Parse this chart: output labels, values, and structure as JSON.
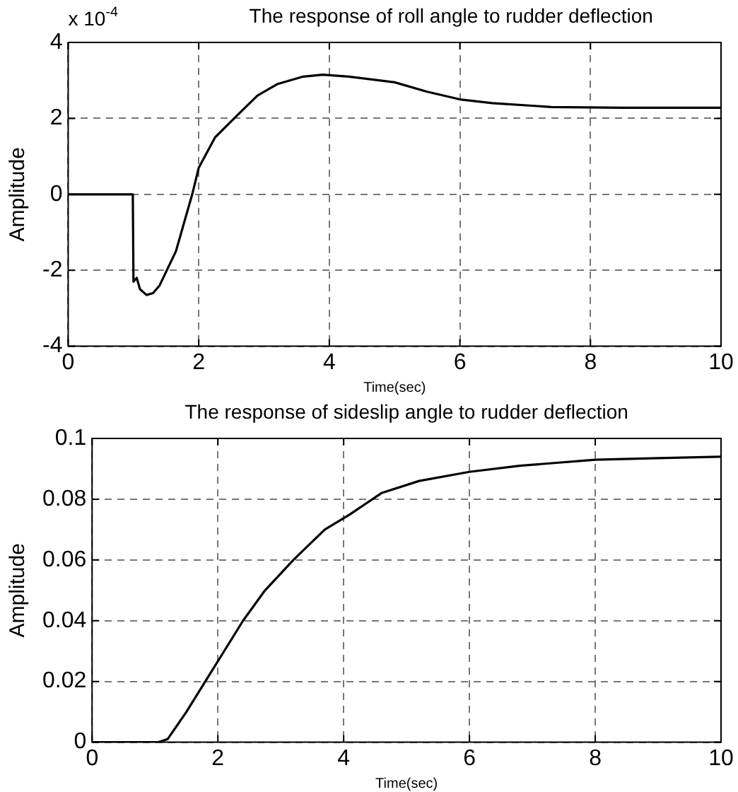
{
  "chart_data": [
    {
      "type": "line",
      "title": "The response of roll angle to rudder deflection",
      "xlabel": "Time(sec)",
      "ylabel": "Amplitude",
      "annotations": [
        "x 10$^{-4}$"
      ],
      "x": [
        0,
        0.5,
        0.99,
        1.0,
        1.05,
        1.1,
        1.2,
        1.3,
        1.4,
        1.65,
        1.9,
        2.0,
        2.25,
        2.6,
        2.9,
        3.2,
        3.6,
        3.9,
        4.3,
        5.0,
        5.5,
        6.0,
        6.5,
        7.4,
        8.5,
        10
      ],
      "series": [
        {
          "color": "#000000",
          "values": [
            0,
            0,
            0,
            -2.3,
            -2.2,
            -2.5,
            -2.65,
            -2.6,
            -2.4,
            -1.5,
            0,
            0.7,
            1.5,
            2.1,
            2.6,
            2.9,
            3.1,
            3.15,
            3.1,
            2.95,
            2.7,
            2.5,
            2.4,
            2.3,
            2.28,
            2.28
          ]
        }
      ],
      "xlim": [
        0,
        10
      ],
      "xticks": [
        0,
        2,
        4,
        6,
        8,
        10
      ],
      "ylim": [
        -4,
        4
      ],
      "yticks": [
        -4,
        -2,
        0,
        2,
        4
      ],
      "grid": true,
      "line_style": "solid",
      "marker": "none"
    },
    {
      "type": "line",
      "title": "The response of sideslip angle to rudder deflection",
      "xlabel": "Time(sec)",
      "ylabel": "Amplitude",
      "x": [
        0,
        0.5,
        1.05,
        1.2,
        1.5,
        1.8,
        2.1,
        2.4,
        2.75,
        3.2,
        3.7,
        4.1,
        4.6,
        5.2,
        6.0,
        6.8,
        8.0,
        9.0,
        10
      ],
      "series": [
        {
          "color": "#000000",
          "values": [
            0,
            0,
            0,
            0.001,
            0.01,
            0.02,
            0.03,
            0.04,
            0.05,
            0.06,
            0.07,
            0.075,
            0.082,
            0.086,
            0.089,
            0.091,
            0.093,
            0.0935,
            0.094
          ]
        }
      ],
      "xlim": [
        0,
        10
      ],
      "xticks": [
        0,
        2,
        4,
        6,
        8,
        10
      ],
      "ylim": [
        0,
        0.1
      ],
      "yticks": [
        0,
        0.02,
        0.04,
        0.06,
        0.08,
        0.1
      ],
      "grid": true,
      "line_style": "solid",
      "marker": "none"
    }
  ]
}
